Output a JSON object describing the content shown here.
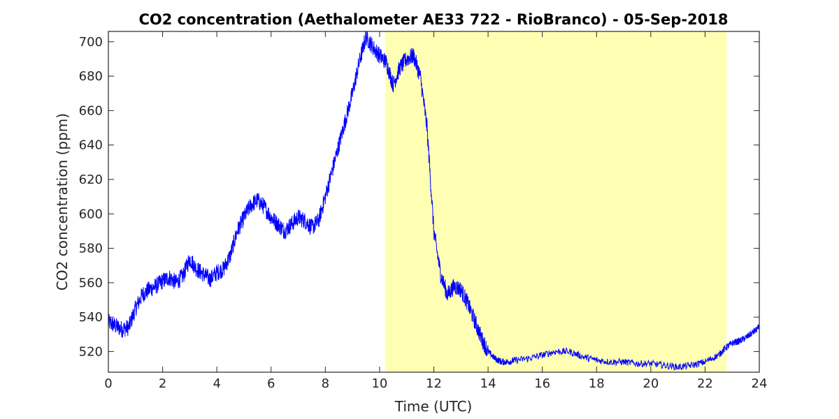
{
  "chart_data": {
    "type": "line",
    "title": "CO2 concentration (Aethalometer AE33 722 - RioBranco) - 05-Sep-2018",
    "xlabel": "Time (UTC)",
    "ylabel": "CO2 concentration (ppm)",
    "xlim": [
      0,
      24
    ],
    "ylim": [
      508,
      706
    ],
    "x_ticks": [
      0,
      2,
      4,
      6,
      8,
      10,
      12,
      14,
      16,
      18,
      20,
      22,
      24
    ],
    "y_ticks": [
      520,
      540,
      560,
      580,
      600,
      620,
      640,
      660,
      680,
      700
    ],
    "grid": false,
    "legend": "none",
    "line_color": "#0000ff",
    "shaded_region": {
      "x_start": 10.2,
      "x_end": 22.8,
      "color": "#ffffb3"
    },
    "series": [
      {
        "x": [
          0,
          0.25,
          0.5,
          0.75,
          1.0,
          1.25,
          1.5,
          1.75,
          2.0,
          2.25,
          2.5,
          2.75,
          3.0,
          3.25,
          3.5,
          3.75,
          4.0,
          4.25,
          4.5,
          4.75,
          5.0,
          5.25,
          5.5,
          5.75,
          6.0,
          6.25,
          6.5,
          6.75,
          7.0,
          7.25,
          7.5,
          7.75,
          8.0,
          8.25,
          8.5,
          8.75,
          9.0,
          9.25,
          9.5,
          9.75,
          10.0,
          10.25,
          10.5,
          10.75,
          11.0,
          11.25,
          11.5,
          11.75,
          12.0,
          12.25,
          12.5,
          12.75,
          13.0,
          13.25,
          13.5,
          13.75,
          14.0,
          14.25,
          14.5,
          14.75,
          15.0,
          15.5,
          16.0,
          16.5,
          17.0,
          17.5,
          18.0,
          18.5,
          19.0,
          19.5,
          20.0,
          20.5,
          21.0,
          21.5,
          22.0,
          22.5,
          22.75,
          23.0,
          23.25,
          23.5,
          23.75,
          24.0
        ],
        "values": [
          537,
          535,
          533,
          534,
          545,
          553,
          556,
          558,
          561,
          563,
          560,
          564,
          574,
          568,
          565,
          562,
          566,
          568,
          576,
          590,
          598,
          605,
          608,
          604,
          598,
          594,
          590,
          594,
          598,
          596,
          592,
          596,
          610,
          625,
          640,
          655,
          670,
          688,
          703,
          697,
          692,
          688,
          675,
          685,
          690,
          692,
          680,
          650,
          590,
          565,
          553,
          558,
          556,
          548,
          538,
          528,
          520,
          516,
          514,
          514,
          515,
          516,
          518,
          520,
          520,
          517,
          515,
          514,
          514,
          513,
          513,
          512,
          511,
          512,
          514,
          518,
          522,
          525,
          526,
          528,
          531,
          534
        ]
      }
    ]
  }
}
